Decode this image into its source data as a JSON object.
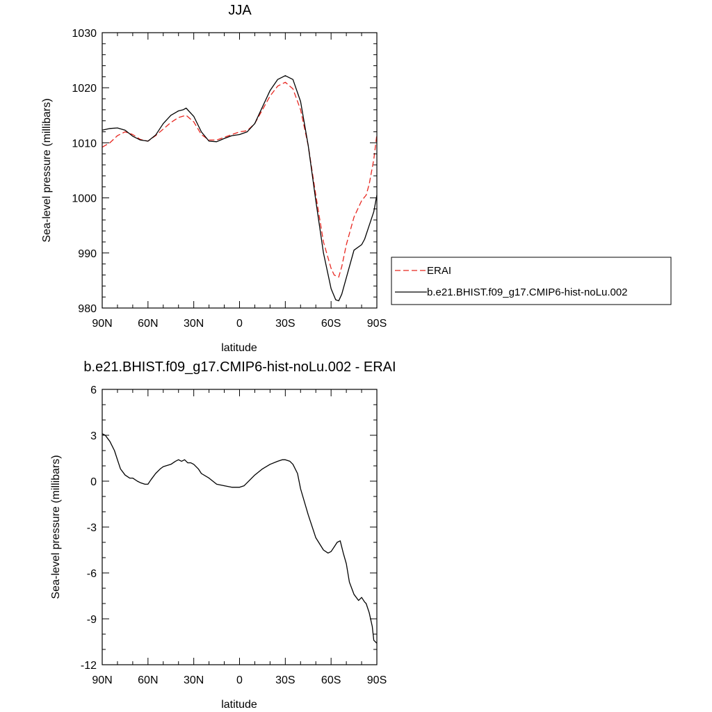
{
  "chart_data": [
    {
      "type": "line",
      "title": "JJA",
      "xlabel": "latitude",
      "ylabel": "Sea-level pressure (millibars)",
      "xlim": [
        90,
        -90
      ],
      "ylim": [
        980,
        1030
      ],
      "xticks": [
        {
          "value": 90,
          "label": "90N"
        },
        {
          "value": 60,
          "label": "60N"
        },
        {
          "value": 30,
          "label": "30N"
        },
        {
          "value": 0,
          "label": "0"
        },
        {
          "value": -30,
          "label": "30S"
        },
        {
          "value": -60,
          "label": "60S"
        },
        {
          "value": -90,
          "label": "90S"
        }
      ],
      "yticks": [
        {
          "value": 980,
          "label": "980"
        },
        {
          "value": 990,
          "label": "990"
        },
        {
          "value": 1000,
          "label": "1000"
        },
        {
          "value": 1010,
          "label": "1010"
        },
        {
          "value": 1020,
          "label": "1020"
        },
        {
          "value": 1030,
          "label": "1030"
        }
      ],
      "legend": {
        "position": "right"
      },
      "series": [
        {
          "name": "ERAI",
          "color": "#e8261f",
          "dash": "dashed",
          "x": [
            90,
            85,
            80,
            75,
            70,
            65,
            60,
            55,
            50,
            45,
            40,
            35,
            30,
            25,
            20,
            15,
            10,
            5,
            0,
            -5,
            -10,
            -15,
            -20,
            -25,
            -30,
            -35,
            -40,
            -45,
            -50,
            -55,
            -60,
            -62,
            -65,
            -67,
            -70,
            -75,
            -80,
            -83,
            -85,
            -88,
            -90
          ],
          "y": [
            1009.2,
            1010.0,
            1011.3,
            1012.0,
            1011.5,
            1010.6,
            1010.3,
            1011.3,
            1012.5,
            1013.7,
            1014.6,
            1015.0,
            1013.8,
            1011.5,
            1010.5,
            1010.5,
            1011.0,
            1011.5,
            1012.0,
            1012.2,
            1013.5,
            1016.0,
            1018.5,
            1020.3,
            1021.0,
            1019.8,
            1016.0,
            1009.5,
            1000.5,
            992.0,
            987.2,
            986.0,
            985.6,
            987.5,
            991.5,
            996.5,
            999.5,
            1000.5,
            1002.5,
            1007.0,
            1011.5
          ]
        },
        {
          "name": "b.e21.BHIST.f09_g17.CMIP6-hist-noLu.002",
          "color": "#000000",
          "dash": "solid",
          "x": [
            90,
            85,
            80,
            75,
            70,
            65,
            60,
            55,
            50,
            45,
            40,
            37,
            35,
            30,
            25,
            20,
            15,
            10,
            5,
            0,
            -5,
            -10,
            -15,
            -20,
            -25,
            -30,
            -35,
            -40,
            -45,
            -50,
            -55,
            -60,
            -63,
            -65,
            -67,
            -70,
            -75,
            -80,
            -82,
            -85,
            -88,
            -90
          ],
          "y": [
            1012.3,
            1012.6,
            1012.7,
            1012.3,
            1011.2,
            1010.5,
            1010.3,
            1011.4,
            1013.5,
            1015.0,
            1015.8,
            1016.0,
            1016.3,
            1014.8,
            1012.0,
            1010.3,
            1010.2,
            1010.8,
            1011.3,
            1011.5,
            1012.0,
            1013.5,
            1016.5,
            1019.5,
            1021.5,
            1022.2,
            1021.5,
            1017.5,
            1009.5,
            999.5,
            990.0,
            983.5,
            981.5,
            981.3,
            982.5,
            985.5,
            990.5,
            991.5,
            992.5,
            995.0,
            997.5,
            1000.5
          ]
        }
      ]
    },
    {
      "type": "line",
      "title": "b.e21.BHIST.f09_g17.CMIP6-hist-noLu.002 - ERAI",
      "xlabel": "latitude",
      "ylabel": "Sea-level pressure (millibars)",
      "xlim": [
        90,
        -90
      ],
      "ylim": [
        -12,
        6
      ],
      "xticks": [
        {
          "value": 90,
          "label": "90N"
        },
        {
          "value": 60,
          "label": "60N"
        },
        {
          "value": 30,
          "label": "30N"
        },
        {
          "value": 0,
          "label": "0"
        },
        {
          "value": -30,
          "label": "30S"
        },
        {
          "value": -60,
          "label": "60S"
        },
        {
          "value": -90,
          "label": "90S"
        }
      ],
      "yticks": [
        {
          "value": -12,
          "label": "-12"
        },
        {
          "value": -9,
          "label": "-9"
        },
        {
          "value": -6,
          "label": "-6"
        },
        {
          "value": -3,
          "label": "-3"
        },
        {
          "value": 0,
          "label": "0"
        },
        {
          "value": 3,
          "label": "3"
        },
        {
          "value": 6,
          "label": "6"
        }
      ],
      "series": [
        {
          "color": "#000000",
          "dash": "solid",
          "x": [
            90,
            88,
            85,
            82,
            80,
            78,
            75,
            72,
            70,
            67,
            65,
            62,
            60,
            58,
            55,
            52,
            50,
            45,
            42,
            40,
            38,
            36,
            34,
            32,
            30,
            27,
            25,
            20,
            15,
            10,
            5,
            0,
            -3,
            -5,
            -10,
            -15,
            -20,
            -25,
            -28,
            -30,
            -33,
            -35,
            -38,
            -40,
            -45,
            -50,
            -55,
            -58,
            -60,
            -62,
            -64,
            -66,
            -67,
            -68,
            -70,
            -72,
            -75,
            -78,
            -80,
            -82,
            -83,
            -85,
            -87,
            -88,
            -90
          ],
          "y": [
            3.1,
            3.0,
            2.6,
            2.0,
            1.4,
            0.8,
            0.4,
            0.2,
            0.2,
            0.0,
            -0.1,
            -0.2,
            -0.2,
            0.1,
            0.5,
            0.8,
            0.95,
            1.1,
            1.3,
            1.4,
            1.3,
            1.4,
            1.2,
            1.2,
            1.1,
            0.8,
            0.5,
            0.2,
            -0.2,
            -0.3,
            -0.4,
            -0.4,
            -0.3,
            -0.1,
            0.4,
            0.8,
            1.1,
            1.3,
            1.4,
            1.4,
            1.3,
            1.1,
            0.5,
            -0.5,
            -2.2,
            -3.7,
            -4.5,
            -4.7,
            -4.6,
            -4.3,
            -4.0,
            -3.9,
            -4.3,
            -4.7,
            -5.4,
            -6.6,
            -7.4,
            -7.8,
            -7.6,
            -7.9,
            -8.0,
            -8.6,
            -9.5,
            -10.4,
            -10.6
          ]
        }
      ]
    }
  ]
}
